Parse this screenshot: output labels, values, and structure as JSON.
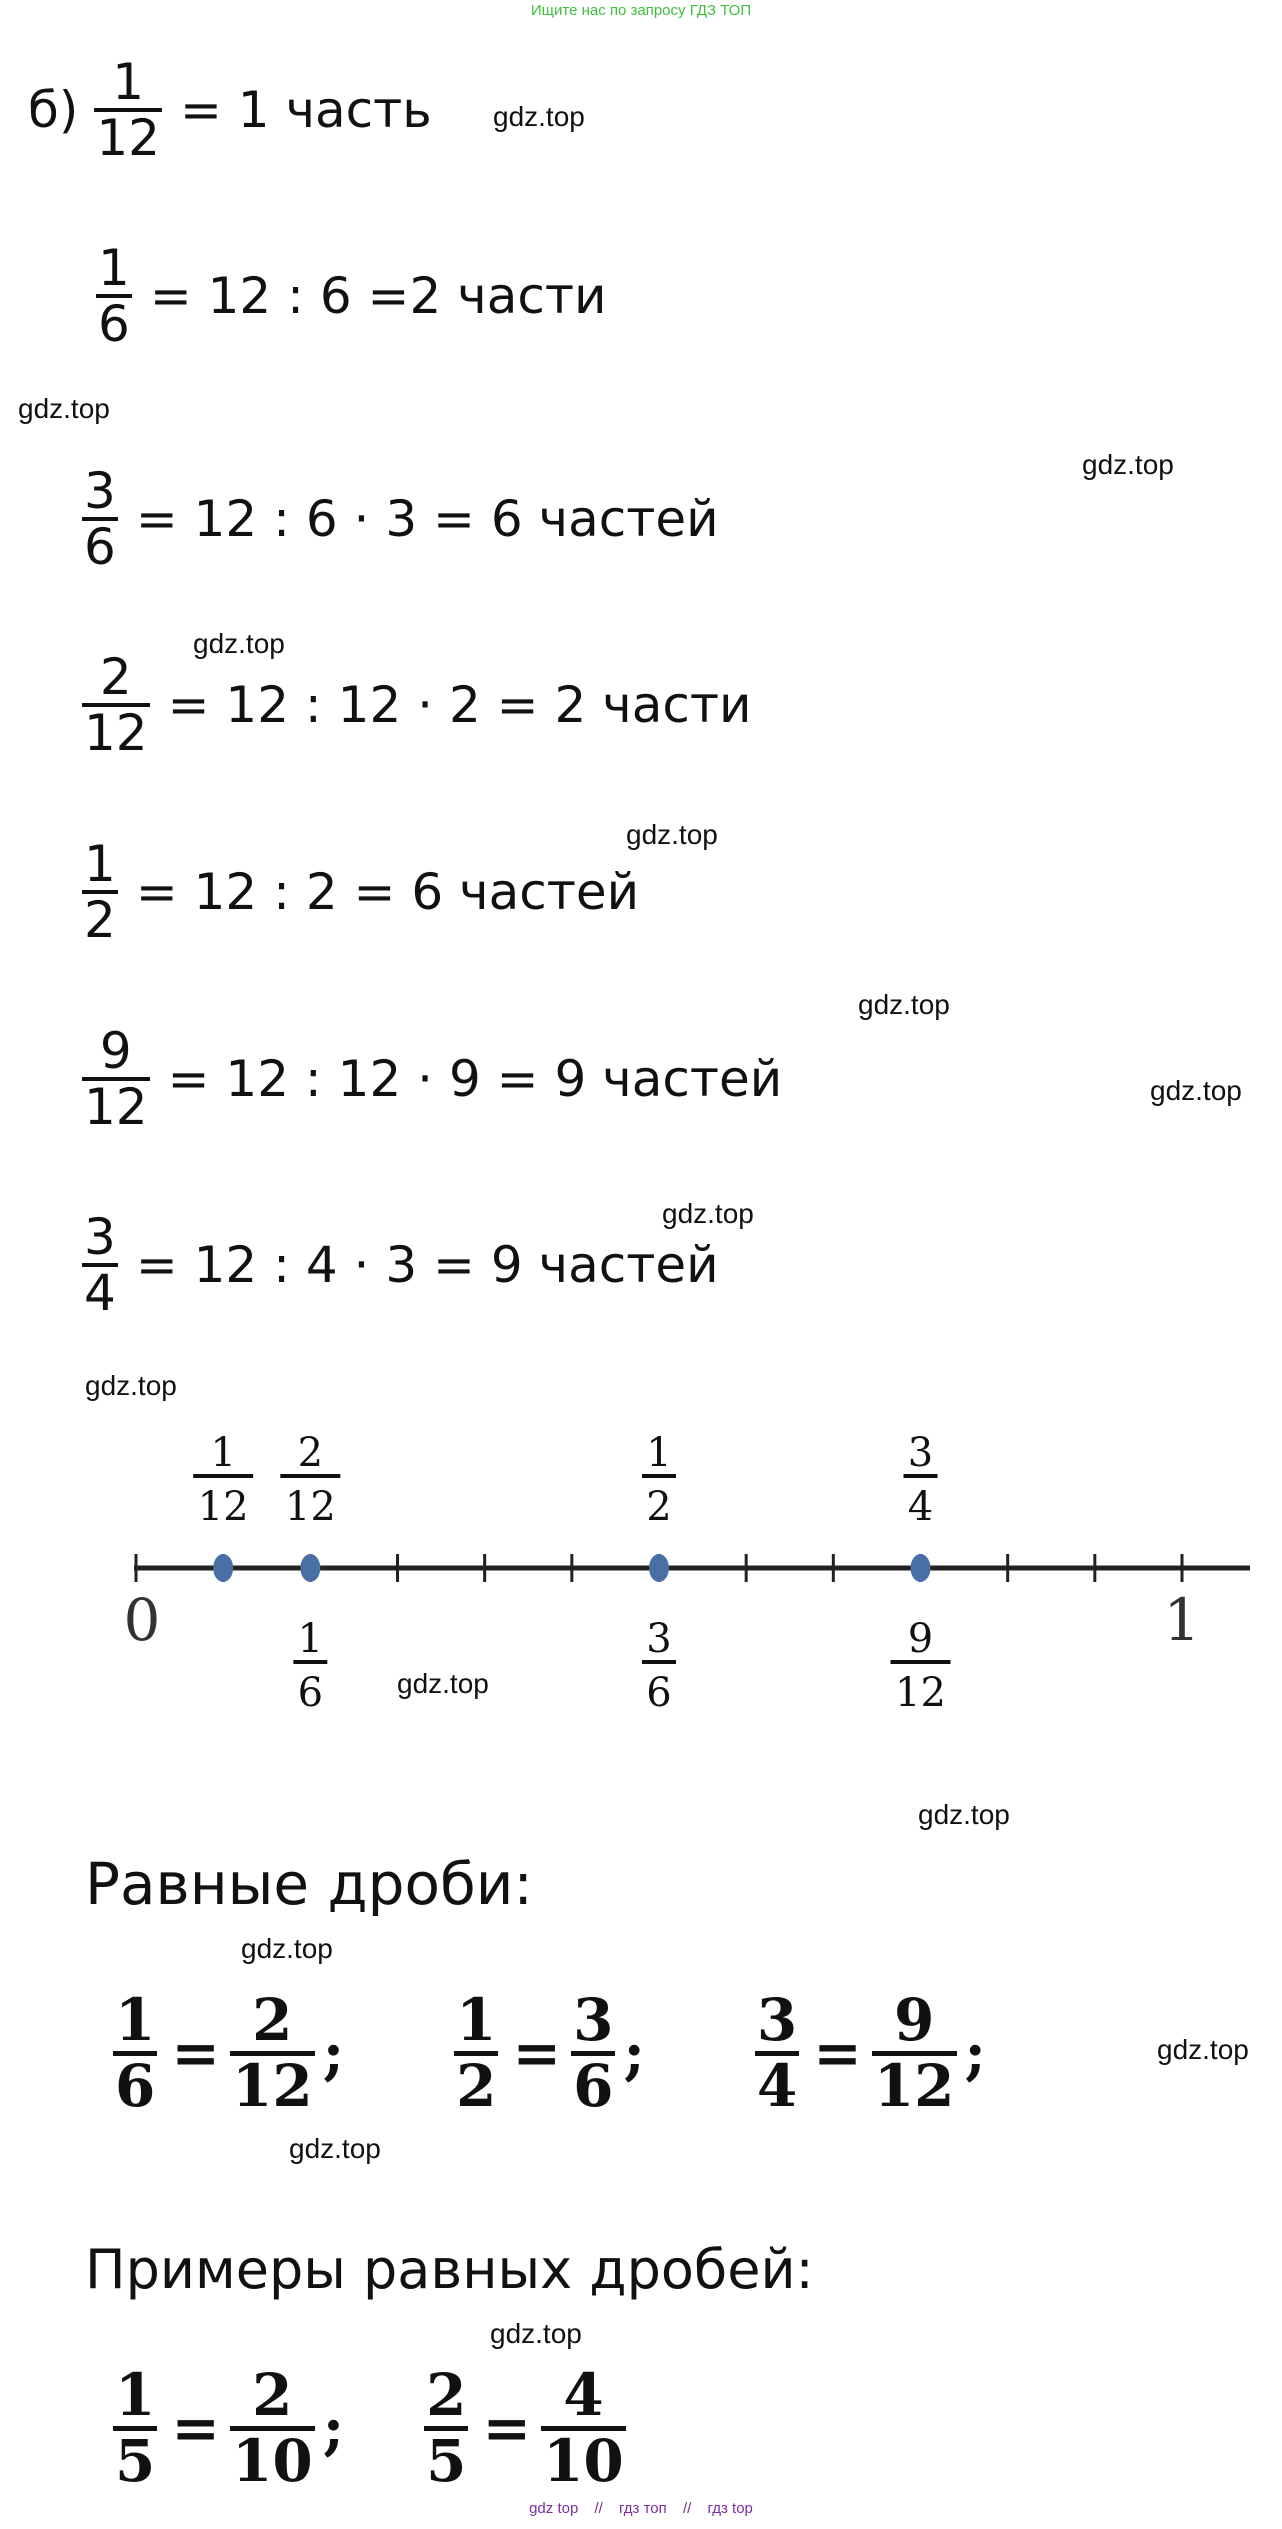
{
  "header_text": "Ищите нас по запросу ГДЗ ТОП",
  "footer": [
    "gdz top",
    "//",
    "гдз топ",
    "//",
    "гдз top"
  ],
  "watermark": "gdz.top",
  "part_b": {
    "prefix": "б)",
    "lines": [
      {
        "num": "1",
        "den": "12",
        "rest": "= 1 часть"
      },
      {
        "num": "1",
        "den": "6",
        "rest": "= 12 : 6 =2 части"
      },
      {
        "num": "3",
        "den": "6",
        "rest": "= 12 : 6 · 3 = 6 частей"
      },
      {
        "num": "2",
        "den": "12",
        "rest": "= 12 : 12 · 2 = 2 части"
      },
      {
        "num": "1",
        "den": "2",
        "rest": "= 12 : 2 = 6 частей"
      },
      {
        "num": "9",
        "den": "12",
        "rest": "= 12 : 12 · 9 = 9 частей"
      },
      {
        "num": "3",
        "den": "4",
        "rest": "= 12 : 4 · 3 = 9 частей"
      }
    ]
  },
  "number_line": {
    "start_label": "0",
    "end_label": "1",
    "divisions": 12,
    "points_at_twelfths": [
      1,
      2,
      6,
      9
    ],
    "above_labels": [
      {
        "num": "1",
        "den": "12",
        "at": 1
      },
      {
        "num": "2",
        "den": "12",
        "at": 2
      },
      {
        "num": "1",
        "den": "2",
        "at": 6
      },
      {
        "num": "3",
        "den": "4",
        "at": 9
      }
    ],
    "below_labels": [
      {
        "num": "1",
        "den": "6",
        "at": 2
      },
      {
        "num": "3",
        "den": "6",
        "at": 6
      },
      {
        "num": "9",
        "den": "12",
        "at": 9
      }
    ],
    "point_color": "#4a6fa5"
  },
  "equal_fractions": {
    "title": "Равные дроби:",
    "pairs": [
      {
        "a_num": "1",
        "a_den": "6",
        "b_num": "2",
        "b_den": "12"
      },
      {
        "a_num": "1",
        "a_den": "2",
        "b_num": "3",
        "b_den": "6"
      },
      {
        "a_num": "3",
        "a_den": "4",
        "b_num": "9",
        "b_den": "12"
      }
    ],
    "eq_sign": "=",
    "separator": ";"
  },
  "examples": {
    "title": "Примеры равных дробей:",
    "pairs": [
      {
        "a_num": "1",
        "a_den": "5",
        "b_num": "2",
        "b_den": "10"
      },
      {
        "a_num": "2",
        "a_den": "5",
        "b_num": "4",
        "b_den": "10"
      }
    ],
    "eq_sign": "=",
    "separator": ";"
  }
}
